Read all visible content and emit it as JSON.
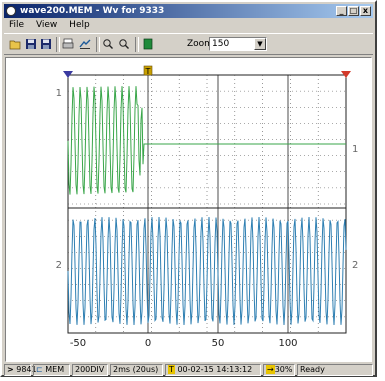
{
  "window": {
    "title": "wave200.MEM - Wv for 9333"
  },
  "title_buttons": [
    "_",
    "□",
    "x"
  ],
  "menu": [
    "File",
    "View",
    "Help"
  ],
  "toolbar": {
    "icons": [
      "open-icon",
      "save-icon",
      "save-as-icon",
      "print-icon",
      "settings-icon",
      "zoom-in-icon",
      "zoom-out-icon",
      "color-icon"
    ],
    "zoom_label": "Zoom",
    "zoom_value": "150"
  },
  "plot": {
    "channel1_label_left": "1",
    "channel1_label_right": "1",
    "channel2_label_left": "2",
    "channel2_label_right": "2",
    "trigger_marker": "T",
    "x_ticks": [
      "-50",
      "0",
      "50",
      "100"
    ],
    "colors": {
      "ch1": "#3aa64a",
      "ch2": "#2e7fb2",
      "grid": "#555555",
      "marker_left": "#3a3aa0",
      "marker_right": "#d23a2a",
      "trigger": "#c8a000"
    }
  },
  "status": {
    "id": "9841",
    "mode": "MEM",
    "div": "200DIV",
    "time": "2ms (20us)",
    "timestamp": "00-02-15 14:13:12",
    "pct": "30%",
    "ready": "Ready"
  }
}
